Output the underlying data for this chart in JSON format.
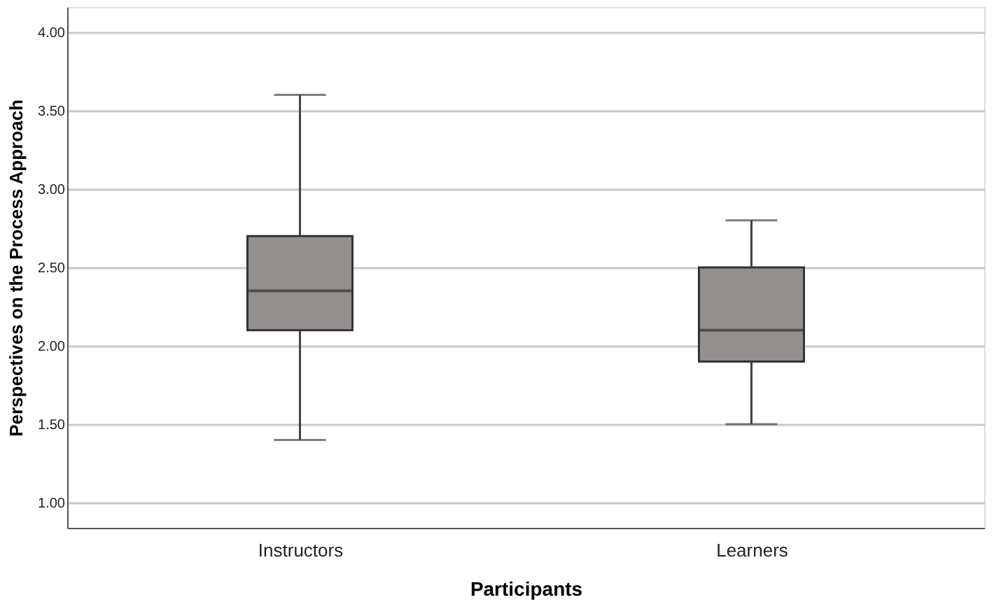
{
  "chart_data": {
    "type": "box",
    "xlabel": "Participants",
    "ylabel": "Perspectives on the Process Approach",
    "categories": [
      "Instructors",
      "Learners"
    ],
    "boxes": [
      {
        "low": 1.4,
        "q1": 2.1,
        "median": 2.35,
        "q3": 2.7,
        "high": 3.6
      },
      {
        "low": 1.5,
        "q1": 1.9,
        "median": 2.1,
        "q3": 2.5,
        "high": 2.8
      }
    ],
    "color": "#938f8e",
    "ylim": [
      0.84,
      4.16
    ],
    "yticks": [
      {
        "value": 1,
        "label": "1.00"
      },
      {
        "value": 1.5,
        "label": "1.50"
      },
      {
        "value": 2,
        "label": "2.00"
      },
      {
        "value": 2.5,
        "label": "2.50"
      },
      {
        "value": 3,
        "label": "3.00"
      },
      {
        "value": 3.5,
        "label": "3.50"
      },
      {
        "value": 4,
        "label": "4.00"
      }
    ],
    "grid": "y"
  }
}
